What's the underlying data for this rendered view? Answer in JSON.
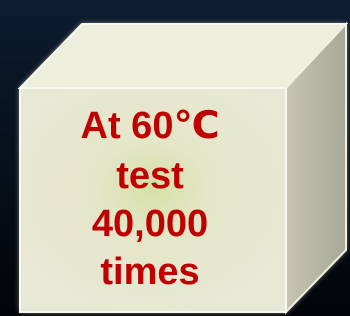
{
  "cube": {
    "lines": [
      "At 60℃",
      "test",
      "40,000",
      "times"
    ]
  }
}
